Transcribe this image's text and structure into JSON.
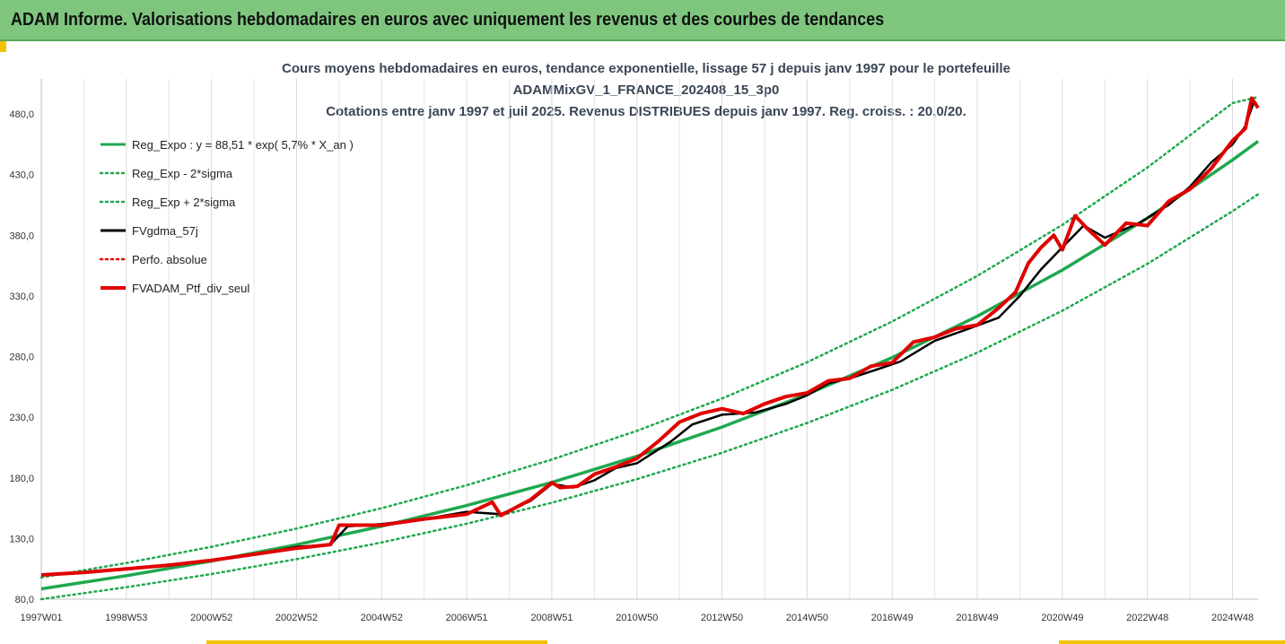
{
  "header": {
    "title": "ADAM Informe. Valorisations hebdomadaires en euros avec uniquement les revenus et des courbes de tendances"
  },
  "chart_data": {
    "type": "line",
    "title": [
      "Cours moyens hebdomadaires  en euros, tendance exponentielle, lissage 57 j depuis janv 1997 pour le portefeuille",
      "ADAMMixGV_1_FRANCE_202408_15_3p0",
      "Cotations  entre janv 1997 et juil 2025. Revenus DISTRIBUES depuis janv 1997. Reg. croiss. : 20,0/20."
    ],
    "xlabel": "",
    "ylabel": "",
    "x_ticks": [
      {
        "label": "1997W01",
        "t": 1997.0
      },
      {
        "label": "1998W53",
        "t": 1999.0
      },
      {
        "label": "2000W52",
        "t": 2001.0
      },
      {
        "label": "2002W52",
        "t": 2003.0
      },
      {
        "label": "2004W52",
        "t": 2005.0
      },
      {
        "label": "2006W51",
        "t": 2007.0
      },
      {
        "label": "2008W51",
        "t": 2009.0
      },
      {
        "label": "2010W50",
        "t": 2011.0
      },
      {
        "label": "2012W50",
        "t": 2013.0
      },
      {
        "label": "2014W50",
        "t": 2015.0
      },
      {
        "label": "2016W49",
        "t": 2017.0
      },
      {
        "label": "2018W49",
        "t": 2019.0
      },
      {
        "label": "2020W49",
        "t": 2021.0
      },
      {
        "label": "2022W48",
        "t": 2023.0
      },
      {
        "label": "2024W48",
        "t": 2025.0
      }
    ],
    "xlim": [
      1997.0,
      2025.6
    ],
    "ylim": [
      80,
      500
    ],
    "y_ticks": [
      {
        "label": "80,0",
        "v": 80
      },
      {
        "label": "130,0",
        "v": 130
      },
      {
        "label": "180,0",
        "v": 180
      },
      {
        "label": "230,0",
        "v": 230
      },
      {
        "label": "280,0",
        "v": 280
      },
      {
        "label": "330,0",
        "v": 330
      },
      {
        "label": "380,0",
        "v": 380
      },
      {
        "label": "430,0",
        "v": 430
      },
      {
        "label": "480,0",
        "v": 480
      }
    ],
    "grid": "vertical",
    "legend_position": "top-left",
    "legend": [
      {
        "label": "Reg_Expo : y = 88,51 * exp( 5,7% *  X_an )",
        "color": "#1fa84f",
        "style": "solid"
      },
      {
        "label": "Reg_Exp - 2*sigma",
        "color": "#1fa84f",
        "style": "dotted"
      },
      {
        "label": "Reg_Exp + 2*sigma",
        "color": "#1fa84f",
        "style": "dotted"
      },
      {
        "label": "FVgdma_57j",
        "color": "#000000",
        "style": "solid"
      },
      {
        "label": "Perfo. absolue",
        "color": "#e00000",
        "style": "dotted"
      },
      {
        "label": "FVADAM_Ptf_div_seul",
        "color": "#e00000",
        "style": "solid"
      }
    ],
    "series": [
      {
        "name": "Reg_Expo : y = 88,51 * exp( 5,7% *  X_an )",
        "color": "#1fa84f",
        "x": [
          1997.0,
          1999.0,
          2001.0,
          2003.0,
          2005.0,
          2007.0,
          2009.0,
          2011.0,
          2013.0,
          2015.0,
          2017.0,
          2019.0,
          2021.0,
          2023.0,
          2025.0,
          2025.6
        ],
        "values": [
          88.5,
          99.3,
          111.4,
          124.9,
          140.1,
          157.2,
          176.3,
          197.8,
          221.9,
          248.9,
          279.2,
          313.2,
          351.3,
          394.1,
          442.1,
          457.4
        ]
      },
      {
        "name": "Reg_Exp - 2*sigma",
        "color": "#1fa84f",
        "x": [
          1997.0,
          1999.0,
          2001.0,
          2003.0,
          2005.0,
          2007.0,
          2009.0,
          2011.0,
          2013.0,
          2015.0,
          2017.0,
          2019.0,
          2021.0,
          2023.0,
          2025.0,
          2025.6
        ],
        "values": [
          80.0,
          89.8,
          100.7,
          113.0,
          126.7,
          142.2,
          159.5,
          178.9,
          200.7,
          225.2,
          252.6,
          283.3,
          317.8,
          356.5,
          399.9,
          413.8
        ]
      },
      {
        "name": "Reg_Exp + 2*sigma",
        "color": "#1fa84f",
        "x": [
          1997.0,
          1999.0,
          2001.0,
          2003.0,
          2005.0,
          2007.0,
          2009.0,
          2011.0,
          2013.0,
          2015.0,
          2017.0,
          2019.0,
          2021.0,
          2023.0,
          2025.0,
          2025.6
        ],
        "values": [
          97.9,
          109.8,
          123.2,
          138.2,
          155.0,
          173.9,
          195.1,
          218.8,
          245.4,
          275.3,
          308.9,
          346.5,
          388.6,
          435.9,
          489.0,
          494.0
        ]
      },
      {
        "name": "FVgdma_57j",
        "color": "#000000",
        "x": [
          1997.0,
          1998.0,
          1999.0,
          2000.0,
          2001.0,
          2002.0,
          2003.0,
          2003.8,
          2004.2,
          2005.0,
          2006.0,
          2007.0,
          2007.8,
          2008.5,
          2009.0,
          2009.5,
          2010.0,
          2010.5,
          2011.0,
          2011.8,
          2012.3,
          2013.0,
          2013.8,
          2014.5,
          2015.0,
          2015.5,
          2016.0,
          2016.7,
          2017.2,
          2018.0,
          2018.8,
          2019.5,
          2020.0,
          2020.5,
          2021.0,
          2021.5,
          2022.0,
          2022.8,
          2023.5,
          2024.0,
          2024.5,
          2025.0,
          2025.3,
          2025.5
        ],
        "values": [
          100.0,
          102.0,
          105.0,
          108.5,
          112.0,
          117.0,
          123.0,
          125.0,
          140.0,
          142.0,
          146.0,
          152.0,
          150.0,
          161.0,
          175.0,
          172.0,
          178.0,
          188.0,
          192.0,
          210.0,
          224.0,
          232.0,
          234.0,
          241.0,
          248.0,
          258.0,
          262.0,
          270.0,
          276.0,
          293.0,
          303.0,
          312.0,
          330.0,
          352.0,
          370.0,
          388.0,
          378.0,
          390.0,
          405.0,
          420.0,
          440.0,
          455.0,
          470.0,
          490.0
        ]
      },
      {
        "name": "FVADAM_Ptf_div_seul",
        "color": "#e00000",
        "x": [
          1997.0,
          1998.0,
          1999.0,
          2000.0,
          2001.0,
          2002.0,
          2003.0,
          2003.8,
          2004.0,
          2005.0,
          2006.0,
          2007.0,
          2007.6,
          2007.8,
          2008.5,
          2009.0,
          2009.2,
          2009.6,
          2010.0,
          2010.5,
          2011.0,
          2011.5,
          2012.0,
          2012.5,
          2013.0,
          2013.5,
          2014.0,
          2014.5,
          2015.0,
          2015.5,
          2016.0,
          2016.5,
          2017.0,
          2017.5,
          2018.0,
          2018.5,
          2019.0,
          2019.5,
          2019.9,
          2020.2,
          2020.5,
          2020.8,
          2021.0,
          2021.3,
          2021.6,
          2022.0,
          2022.5,
          2023.0,
          2023.5,
          2024.0,
          2024.5,
          2025.0,
          2025.3,
          2025.45,
          2025.6
        ],
        "values": [
          100.0,
          102.0,
          105.0,
          108.0,
          112.0,
          117.0,
          122.0,
          125.0,
          141.0,
          141.0,
          146.0,
          150.0,
          160.0,
          149.0,
          162.0,
          176.0,
          172.0,
          173.0,
          183.0,
          189.0,
          196.0,
          210.0,
          226.0,
          233.0,
          237.0,
          233.0,
          241.0,
          247.0,
          250.0,
          260.0,
          262.0,
          272.0,
          275.0,
          292.0,
          296.0,
          303.0,
          306.0,
          320.0,
          333.0,
          357.0,
          370.0,
          380.0,
          368.0,
          396.0,
          385.0,
          372.0,
          390.0,
          388.0,
          408.0,
          418.0,
          435.0,
          458.0,
          468.0,
          493.0,
          485.0
        ]
      }
    ]
  }
}
